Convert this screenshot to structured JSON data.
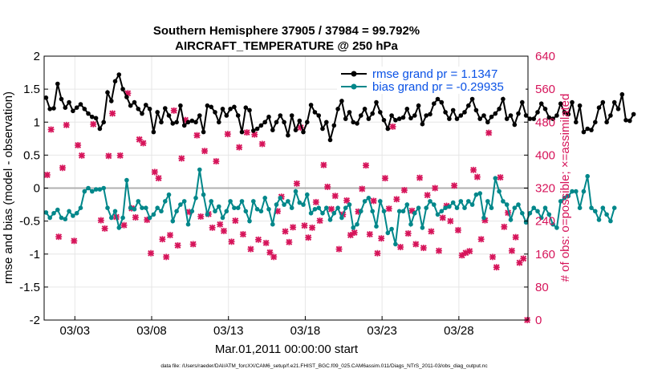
{
  "chart_data": {
    "type": "line",
    "title_line1": "Southern Hemisphere 37905 / 37984 = 99.792%",
    "title_line2": "AIRCRAFT_TEMPERATURE @ 250 hPa",
    "xlabel": "Mar.01,2011 00:00:00 start",
    "ylabel": "rmse and bias (model - observation)",
    "y2label": "# of obs: o=possible; ×=assimilated",
    "footnote": "data file: /Users/raeder/DAI/ATM_forcXX/CAM6_setup/f.e21.FHIST_BGC.f09_025.CAM6assim.011/Diags_NTrS_2011-03/obs_diag_output.nc",
    "xlim": [
      1.0,
      32.5
    ],
    "ylim": [
      -2,
      2
    ],
    "y2lim": [
      0,
      640
    ],
    "x_ticks": [
      3,
      8,
      13,
      18,
      23,
      28
    ],
    "x_tick_labels": [
      "03/03",
      "03/08",
      "03/13",
      "03/18",
      "03/23",
      "03/28"
    ],
    "y_ticks": [
      -2,
      -1.5,
      -1,
      -0.5,
      0,
      0.5,
      1,
      1.5,
      2
    ],
    "y_tick_labels": [
      "-2",
      "-1.5",
      "-1",
      "-0.5",
      "0",
      "0.5",
      "1",
      "1.5",
      "2"
    ],
    "y2_ticks": [
      0,
      80,
      160,
      240,
      320,
      400,
      480,
      560,
      640
    ],
    "y2_tick_labels": [
      "0",
      "80",
      "160",
      "240",
      "320",
      "400",
      "480",
      "560",
      "640"
    ],
    "x_start": 1.125,
    "x_step": 0.25,
    "series": [
      {
        "name": "rmse grand pr = 1.1347",
        "color": "#000000",
        "values": [
          1.37,
          1.2,
          1.21,
          1.58,
          1.35,
          1.22,
          1.3,
          1.17,
          1.22,
          1.27,
          1.2,
          1.13,
          1.08,
          1.06,
          0.9,
          1.0,
          1.45,
          1.32,
          1.62,
          1.72,
          1.5,
          1.38,
          1.25,
          1.3,
          1.2,
          1.13,
          1.26,
          1.2,
          0.85,
          1.15,
          1.0,
          1.21,
          1.1,
          0.98,
          1.0,
          1.25,
          0.95,
          1.0,
          1.02,
          1.0,
          1.1,
          0.85,
          1.25,
          1.23,
          1.15,
          1.0,
          1.2,
          1.1,
          1.2,
          1.23,
          1.1,
          0.85,
          1.22,
          1.18,
          0.87,
          0.9,
          0.95,
          1.0,
          1.08,
          0.88,
          1.0,
          1.1,
          1.0,
          0.8,
          1.1,
          0.88,
          1.02,
          0.85,
          1.0,
          1.26,
          1.15,
          1.1,
          0.9,
          1.0,
          0.73,
          0.95,
          1.2,
          1.32,
          1.05,
          1.15,
          1.0,
          0.98,
          1.1,
          1.2,
          1.05,
          1.13,
          1.3,
          1.15,
          1.03,
          0.9,
          1.1,
          1.03,
          1.05,
          1.07,
          1.2,
          1.06,
          1.1,
          1.25,
          0.97,
          1.1,
          1.12,
          1.28,
          1.35,
          1.3,
          1.15,
          1.05,
          1.18,
          1.05,
          1.1,
          1.15,
          1.25,
          1.35,
          1.18,
          1.05,
          1.1,
          1.0,
          1.08,
          1.13,
          1.2,
          1.35,
          1.05,
          1.1,
          0.96,
          1.13,
          1.3,
          1.1,
          1.05,
          1.05,
          1.15,
          1.28,
          1.2,
          1.07,
          1.05,
          1.1,
          1.28,
          1.15,
          1.12,
          1.3,
          1.0,
          1.25,
          0.85,
          0.9,
          0.88,
          1.0,
          1.22,
          1.3,
          1.0,
          1.1,
          1.3,
          1.2,
          1.42,
          1.03,
          1.02,
          1.12
        ]
      },
      {
        "name": "bias grand pr = -0.29935",
        "color": "#00878a",
        "values": [
          -0.37,
          -0.45,
          -0.38,
          -0.33,
          -0.45,
          -0.47,
          -0.35,
          -0.42,
          -0.38,
          -0.3,
          -0.05,
          0.0,
          -0.05,
          -0.02,
          -0.02,
          0.0,
          -0.3,
          -0.45,
          -0.35,
          -0.6,
          -0.45,
          0.12,
          -0.3,
          -0.32,
          -0.2,
          -0.3,
          -0.3,
          -0.45,
          -0.4,
          -0.3,
          -0.35,
          -0.2,
          -0.1,
          -0.5,
          -0.35,
          -0.25,
          -0.2,
          -0.55,
          -0.35,
          -0.15,
          0.28,
          -0.1,
          -0.4,
          -0.2,
          -0.35,
          -0.28,
          -0.45,
          -0.35,
          -0.2,
          -0.3,
          -0.3,
          -0.2,
          -0.35,
          -0.5,
          -0.2,
          -0.32,
          -0.35,
          -0.15,
          -0.32,
          -0.55,
          -0.25,
          -0.15,
          -0.25,
          -0.2,
          -0.3,
          -0.05,
          -0.22,
          -0.25,
          -0.1,
          -0.38,
          -0.32,
          -0.3,
          -0.38,
          -0.3,
          -0.48,
          -0.38,
          -0.3,
          -0.45,
          -0.3,
          -0.25,
          -0.6,
          -0.55,
          -0.35,
          -0.2,
          -0.15,
          -0.35,
          -0.58,
          -0.2,
          -0.35,
          -0.68,
          -0.62,
          -0.85,
          -0.35,
          -0.35,
          -0.25,
          -0.55,
          -0.38,
          -0.3,
          -0.6,
          -0.3,
          -0.2,
          -0.25,
          -0.4,
          -0.35,
          -0.3,
          -0.28,
          -0.22,
          -0.3,
          -0.2,
          -0.3,
          -0.2,
          -0.25,
          -0.1,
          -0.08,
          -0.45,
          -0.2,
          -0.3,
          0.15,
          -0.05,
          -0.2,
          -0.25,
          -0.48,
          -0.3,
          -0.25,
          -0.38,
          -0.52,
          -0.38,
          -0.3,
          -0.35,
          -0.45,
          -0.3,
          -0.4,
          -0.55,
          -0.6,
          -0.2,
          -0.15,
          -0.12,
          -0.05,
          -0.05,
          -0.3,
          -0.05,
          0.18,
          -0.3,
          -0.35,
          -0.48,
          -0.3,
          -0.4,
          -0.5,
          -0.3
        ]
      }
    ],
    "obs_possible_assimilated": [
      [
        1.2,
        352
      ],
      [
        1.45,
        462
      ],
      [
        1.95,
        202
      ],
      [
        2.2,
        369
      ],
      [
        2.45,
        473
      ],
      [
        2.95,
        192
      ],
      [
        3.2,
        424
      ],
      [
        3.45,
        399
      ],
      [
        4.2,
        475
      ],
      [
        4.7,
        242
      ],
      [
        4.95,
        222
      ],
      [
        5.2,
        398
      ],
      [
        5.45,
        501
      ],
      [
        5.7,
        250
      ],
      [
        5.95,
        399
      ],
      [
        6.2,
        230
      ],
      [
        6.45,
        550
      ],
      [
        6.7,
        271
      ],
      [
        6.95,
        249
      ],
      [
        7.2,
        438
      ],
      [
        7.45,
        429
      ],
      [
        7.7,
        243
      ],
      [
        7.95,
        162
      ],
      [
        8.2,
        359
      ],
      [
        8.45,
        344
      ],
      [
        8.7,
        196
      ],
      [
        8.95,
        153
      ],
      [
        9.2,
        206
      ],
      [
        9.45,
        508
      ],
      [
        9.7,
        181
      ],
      [
        9.95,
        392
      ],
      [
        10.2,
        485
      ],
      [
        10.45,
        262
      ],
      [
        10.7,
        184
      ],
      [
        10.95,
        448
      ],
      [
        11.2,
        251
      ],
      [
        11.45,
        410
      ],
      [
        11.7,
        257
      ],
      [
        11.95,
        224
      ],
      [
        12.2,
        385
      ],
      [
        12.45,
        232
      ],
      [
        12.7,
        216
      ],
      [
        12.95,
        451
      ],
      [
        13.2,
        190
      ],
      [
        13.45,
        241
      ],
      [
        13.7,
        419
      ],
      [
        13.95,
        208
      ],
      [
        14.2,
        455
      ],
      [
        14.45,
        172
      ],
      [
        14.7,
        450
      ],
      [
        14.95,
        195
      ],
      [
        15.2,
        427
      ],
      [
        15.45,
        187
      ],
      [
        15.7,
        164
      ],
      [
        15.95,
        153
      ],
      [
        16.2,
        264
      ],
      [
        16.45,
        299
      ],
      [
        16.7,
        215
      ],
      [
        16.95,
        189
      ],
      [
        17.2,
        225
      ],
      [
        17.45,
        331
      ],
      [
        17.7,
        467
      ],
      [
        17.95,
        229
      ],
      [
        18.2,
        200
      ],
      [
        18.45,
        224
      ],
      [
        18.7,
        286
      ],
      [
        18.95,
        241
      ],
      [
        19.2,
        376
      ],
      [
        19.45,
        323
      ],
      [
        19.7,
        269
      ],
      [
        19.95,
        301
      ],
      [
        20.2,
        172
      ],
      [
        20.45,
        256
      ],
      [
        20.7,
        290
      ],
      [
        20.95,
        206
      ],
      [
        21.2,
        212
      ],
      [
        21.45,
        263
      ],
      [
        21.7,
        318
      ],
      [
        21.95,
        375
      ],
      [
        22.2,
        208
      ],
      [
        22.45,
        289
      ],
      [
        22.7,
        162
      ],
      [
        22.95,
        198
      ],
      [
        23.2,
        344
      ],
      [
        23.45,
        270
      ],
      [
        23.7,
        469
      ],
      [
        23.95,
        293
      ],
      [
        24.2,
        177
      ],
      [
        24.45,
        315
      ],
      [
        24.7,
        210
      ],
      [
        24.95,
        265
      ],
      [
        25.2,
        184
      ],
      [
        25.45,
        345
      ],
      [
        25.7,
        175
      ],
      [
        25.95,
        303
      ],
      [
        26.2,
        215
      ],
      [
        26.45,
        320
      ],
      [
        26.7,
        168
      ],
      [
        26.95,
        248
      ],
      [
        27.2,
        277
      ],
      [
        27.45,
        240
      ],
      [
        27.7,
        326
      ],
      [
        27.95,
        218
      ],
      [
        28.2,
        157
      ],
      [
        28.45,
        163
      ],
      [
        28.7,
        167
      ],
      [
        28.95,
        364
      ],
      [
        29.2,
        347
      ],
      [
        29.45,
        196
      ],
      [
        29.7,
        242
      ],
      [
        29.95,
        454
      ],
      [
        30.2,
        153
      ],
      [
        30.45,
        128
      ],
      [
        30.7,
        346
      ],
      [
        30.95,
        226
      ],
      [
        31.2,
        260
      ],
      [
        31.45,
        168
      ],
      [
        31.7,
        201
      ],
      [
        31.95,
        139
      ],
      [
        32.2,
        149
      ],
      [
        32.45,
        0
      ]
    ],
    "obs_color": "#d6145a",
    "zero_line_color": "#b0b0b0"
  }
}
